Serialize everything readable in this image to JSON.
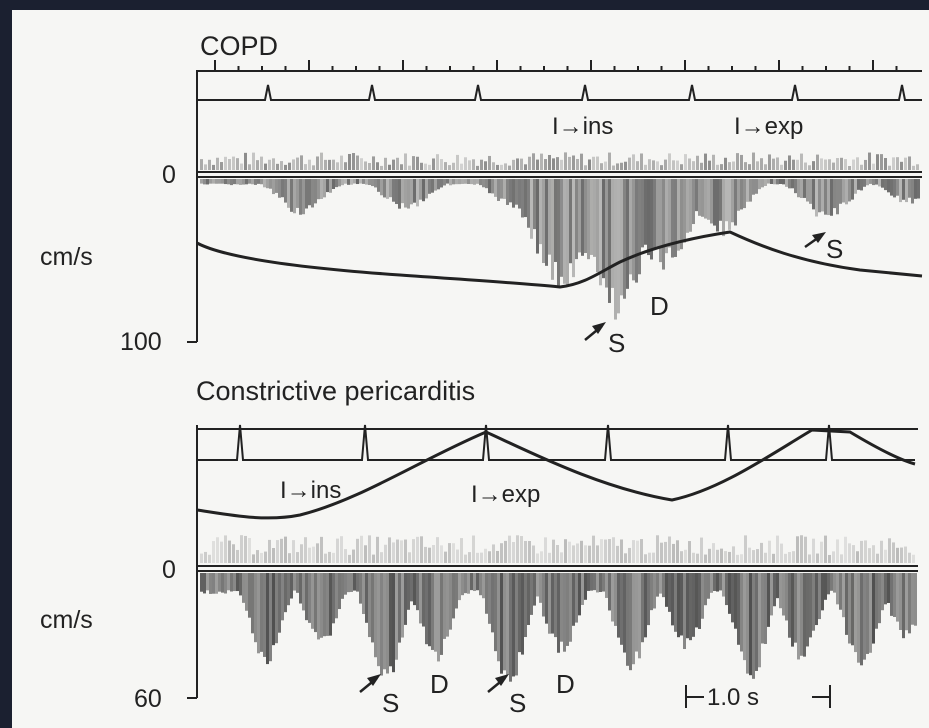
{
  "colors": {
    "frame": "#1b2030",
    "paper": "#f6f6f4",
    "ink": "#222222",
    "doppler": "#555555"
  },
  "top_panel": {
    "title": "COPD",
    "zero_label": "0",
    "unit_label": "cm/s",
    "max_label": "100",
    "insp_label": "I→ins",
    "exp_label": "I→exp",
    "s_label_1": "S",
    "d_label": "D",
    "s_label_2": "S"
  },
  "bottom_panel": {
    "title": "Constrictive pericarditis",
    "zero_label": "0",
    "unit_label": "cm/s",
    "max_label": "60",
    "insp_label": "I→ins",
    "exp_label": "I→exp",
    "s_label_1": "S",
    "d_label_1": "D",
    "s_label_2": "S",
    "d_label_2": "D",
    "scale_label": "1.0 s"
  }
}
